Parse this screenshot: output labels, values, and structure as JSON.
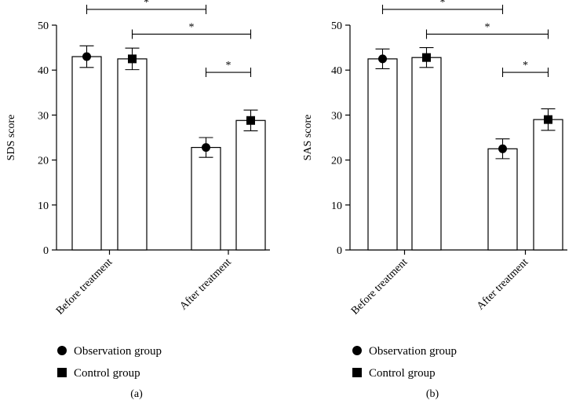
{
  "chart_data": [
    {
      "type": "bar",
      "ylabel": "SDS score",
      "panel_label": "(a)",
      "ylim": [
        0,
        50
      ],
      "yticks": [
        0,
        10,
        20,
        30,
        40,
        50
      ],
      "categories": [
        "Before treatment",
        "After treatment"
      ],
      "series": [
        {
          "name": "Observation group",
          "marker": "circle",
          "values": [
            43.0,
            22.8
          ],
          "errors": [
            2.4,
            2.2
          ]
        },
        {
          "name": "Control group",
          "marker": "square",
          "values": [
            42.5,
            28.8
          ],
          "errors": [
            2.4,
            2.3
          ]
        }
      ],
      "significance": [
        {
          "label": "*",
          "from": [
            0,
            0
          ],
          "to": [
            1,
            0
          ],
          "level": 53.5
        },
        {
          "label": "*",
          "from": [
            0,
            1
          ],
          "to": [
            1,
            1
          ],
          "level": 48.0
        },
        {
          "label": "*",
          "from": [
            1,
            0
          ],
          "to": [
            1,
            1
          ],
          "level": 39.5
        }
      ]
    },
    {
      "type": "bar",
      "ylabel": "SAS score",
      "panel_label": "(b)",
      "ylim": [
        0,
        50
      ],
      "yticks": [
        0,
        10,
        20,
        30,
        40,
        50
      ],
      "categories": [
        "Before treatment",
        "After treatment"
      ],
      "series": [
        {
          "name": "Observation group",
          "marker": "circle",
          "values": [
            42.5,
            22.5
          ],
          "errors": [
            2.2,
            2.2
          ]
        },
        {
          "name": "Control group",
          "marker": "square",
          "values": [
            42.8,
            29.0
          ],
          "errors": [
            2.2,
            2.4
          ]
        }
      ],
      "significance": [
        {
          "label": "*",
          "from": [
            0,
            0
          ],
          "to": [
            1,
            0
          ],
          "level": 53.5
        },
        {
          "label": "*",
          "from": [
            0,
            1
          ],
          "to": [
            1,
            1
          ],
          "level": 48.0
        },
        {
          "label": "*",
          "from": [
            1,
            0
          ],
          "to": [
            1,
            1
          ],
          "level": 39.5
        }
      ]
    }
  ],
  "legend": [
    {
      "label": "Observation group",
      "marker": "circle"
    },
    {
      "label": "Control group",
      "marker": "square"
    }
  ]
}
